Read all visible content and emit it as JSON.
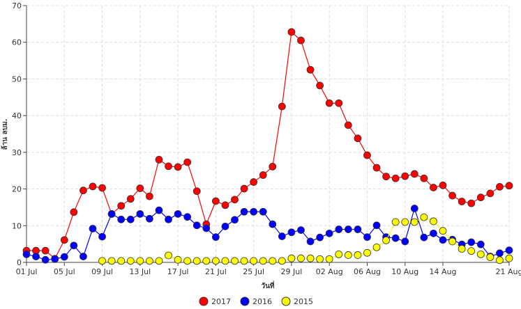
{
  "chart_data": {
    "type": "line",
    "ylabel": "ล้าน ลบม.",
    "xlabel": "วันที่",
    "ylim": [
      0,
      70
    ],
    "yticks": [
      0,
      10,
      20,
      30,
      40,
      50,
      60,
      70
    ],
    "x_start": "01 Jul",
    "x_ticks": [
      {
        "day": 0,
        "label": "01 Jul"
      },
      {
        "day": 4,
        "label": "05 Jul"
      },
      {
        "day": 8,
        "label": "09 Jul"
      },
      {
        "day": 12,
        "label": "13 Jul"
      },
      {
        "day": 16,
        "label": "17 Jul"
      },
      {
        "day": 20,
        "label": "21 Jul"
      },
      {
        "day": 24,
        "label": "25 Jul"
      },
      {
        "day": 28,
        "label": "29 Jul"
      },
      {
        "day": 32,
        "label": "02 Aug"
      },
      {
        "day": 36,
        "label": "06 Aug"
      },
      {
        "day": 40,
        "label": "10 Aug"
      },
      {
        "day": 44,
        "label": "14 Aug"
      },
      {
        "day": 51,
        "label": "21 Aug"
      }
    ],
    "grid": true,
    "legend_position": "bottom",
    "series": [
      {
        "name": "2017",
        "color": "#ff0000",
        "x": [
          0,
          1,
          2,
          3,
          4,
          5,
          6,
          7,
          8,
          9,
          10,
          11,
          12,
          13,
          14,
          15,
          16,
          17,
          18,
          19,
          20,
          21,
          22,
          23,
          24,
          25,
          26,
          27,
          28,
          29,
          30,
          31,
          32,
          33,
          34,
          35,
          36,
          37,
          38,
          39,
          40,
          41,
          42,
          43,
          44,
          45,
          46,
          47,
          48,
          49,
          50,
          51
        ],
        "y": [
          3.2,
          3.2,
          3.2,
          1.0,
          6.1,
          13.7,
          19.6,
          20.7,
          20.3,
          13.2,
          15.4,
          17.3,
          20.2,
          18.0,
          28.0,
          26.2,
          26.0,
          27.3,
          19.4,
          10.4,
          16.7,
          15.6,
          17.1,
          20.1,
          21.9,
          23.8,
          26.1,
          42.5,
          62.8,
          60.5,
          52.5,
          48.2,
          43.4,
          43.4,
          37.4,
          33.8,
          29.2,
          25.8,
          23.4,
          22.9,
          23.5,
          24.1,
          22.9,
          20.4,
          21.0,
          18.2,
          16.6,
          16.1,
          17.7,
          18.8,
          20.6,
          20.9
        ]
      },
      {
        "name": "2016",
        "color": "#0000ff",
        "x": [
          0,
          1,
          2,
          3,
          4,
          5,
          6,
          7,
          8,
          9,
          10,
          11,
          12,
          13,
          14,
          15,
          16,
          17,
          18,
          19,
          20,
          21,
          22,
          23,
          24,
          25,
          26,
          27,
          28,
          29,
          30,
          31,
          32,
          33,
          34,
          35,
          36,
          37,
          38,
          39,
          40,
          41,
          42,
          43,
          44,
          45,
          46,
          47,
          48,
          49,
          50,
          51
        ],
        "y": [
          2.2,
          1.6,
          0.7,
          0.9,
          1.5,
          4.6,
          1.6,
          9.2,
          7.0,
          13.2,
          11.7,
          11.7,
          13.2,
          11.9,
          14.2,
          11.7,
          13.2,
          12.4,
          10.1,
          9.3,
          6.9,
          9.8,
          11.6,
          13.8,
          13.8,
          13.8,
          10.4,
          7.1,
          8.2,
          8.8,
          5.7,
          6.8,
          7.9,
          9.0,
          9.0,
          9.0,
          6.9,
          10.1,
          6.9,
          6.6,
          5.7,
          14.7,
          6.8,
          7.9,
          6.1,
          6.2,
          4.9,
          5.5,
          4.9,
          1.6,
          2.5,
          3.3
        ]
      },
      {
        "name": "2015",
        "color": "#ffff00",
        "x": [
          8,
          9,
          10,
          11,
          12,
          13,
          14,
          15,
          16,
          17,
          18,
          19,
          20,
          21,
          22,
          23,
          24,
          25,
          26,
          27,
          28,
          29,
          30,
          31,
          32,
          33,
          34,
          35,
          36,
          37,
          38,
          39,
          40,
          41,
          42,
          43,
          44,
          45,
          46,
          47,
          48,
          49,
          50,
          51
        ],
        "y": [
          0.4,
          0.4,
          0.4,
          0.4,
          0.4,
          0.4,
          0.4,
          1.9,
          0.7,
          0.4,
          0.4,
          0.4,
          0.4,
          0.4,
          0.4,
          0.4,
          0.4,
          0.4,
          0.4,
          0.4,
          1.1,
          1.1,
          1.1,
          0.9,
          0.9,
          2.2,
          2.0,
          2.0,
          2.6,
          4.1,
          6.0,
          11.0,
          11.0,
          11.0,
          12.3,
          11.2,
          8.6,
          5.7,
          3.7,
          3.1,
          2.2,
          1.4,
          0.6,
          1.1
        ]
      }
    ]
  }
}
